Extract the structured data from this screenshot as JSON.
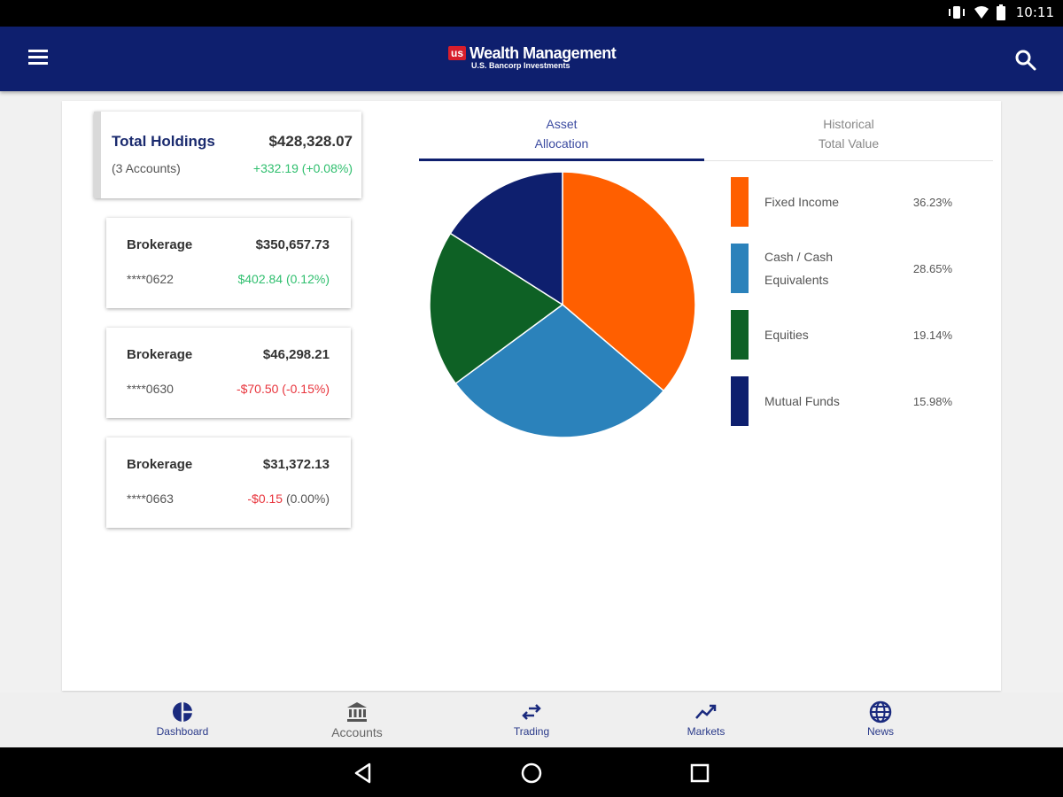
{
  "status_bar": {
    "time": "10:11"
  },
  "header": {
    "logo_badge": "us",
    "logo_main": "Wealth Management",
    "logo_sub": "U.S. Bancorp Investments"
  },
  "summary": {
    "title": "Total Holdings",
    "value": "$428,328.07",
    "accounts": "(3 Accounts)",
    "change": "+332.19 (+0.08%)"
  },
  "accounts": [
    {
      "name": "Brokerage",
      "value": "$350,657.73",
      "number": "****0622",
      "change": "$402.84 (0.12%)",
      "change_pct": ""
    },
    {
      "name": "Brokerage",
      "value": "$46,298.21",
      "number": "****0630",
      "change": "-$70.50 (-0.15%)",
      "change_pct": ""
    },
    {
      "name": "Brokerage",
      "value": "$31,372.13",
      "number": "****0663",
      "change": "-$0.15",
      "change_pct": "(0.00%)"
    }
  ],
  "tabs": [
    {
      "line1": "Asset",
      "line2": "Allocation"
    },
    {
      "line1": "Historical",
      "line2": "Total Value"
    }
  ],
  "allocation": [
    {
      "label": "Fixed Income",
      "pct_text": "36.23%",
      "value": 36.23,
      "color": "#ff5f00"
    },
    {
      "label": "Cash / Cash Equivalents",
      "pct_text": "28.65%",
      "value": 28.65,
      "color": "#2b82bb"
    },
    {
      "label": "Equities",
      "pct_text": "19.14%",
      "value": 19.14,
      "color": "#0e6125"
    },
    {
      "label": "Mutual Funds",
      "pct_text": "15.98%",
      "value": 15.98,
      "color": "#0e1f6e"
    }
  ],
  "bottom_nav": [
    {
      "label": "Dashboard",
      "icon": "pie-chart-icon"
    },
    {
      "label": "Accounts",
      "icon": "bank-icon"
    },
    {
      "label": "Trading",
      "icon": "swap-arrows-icon"
    },
    {
      "label": "Markets",
      "icon": "trending-up-icon"
    },
    {
      "label": "News",
      "icon": "globe-icon"
    }
  ],
  "colors": {
    "brand_navy": "#0e1f6e",
    "gain_green": "#2fbf6e",
    "loss_red": "#e8343c"
  }
}
